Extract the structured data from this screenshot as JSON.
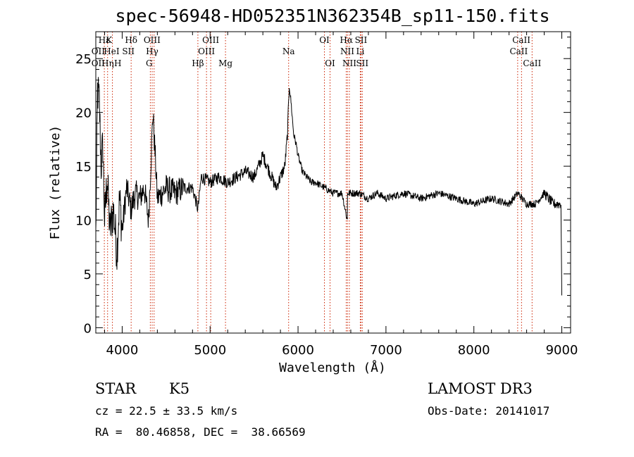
{
  "chart_data": {
    "type": "line",
    "title": "spec-56948-HD052351N362354B_sp11-150.fits",
    "xlabel": "Wavelength (Å)",
    "ylabel": "Flux (relative)",
    "xlim": [
      3700,
      9100
    ],
    "ylim": [
      -0.5,
      27.5
    ],
    "xticks": [
      4000,
      5000,
      6000,
      7000,
      8000,
      9000
    ],
    "yticks": [
      0,
      5,
      10,
      15,
      20,
      25
    ],
    "grid": false,
    "series": [
      {
        "name": "flux",
        "x": [
          3700,
          3720,
          3740,
          3760,
          3780,
          3800,
          3830,
          3860,
          3900,
          3940,
          3970,
          4000,
          4050,
          4100,
          4150,
          4200,
          4250,
          4300,
          4350,
          4400,
          4500,
          4600,
          4700,
          4800,
          4861,
          4900,
          5000,
          5100,
          5200,
          5300,
          5400,
          5500,
          5600,
          5700,
          5750,
          5800,
          5850,
          5880,
          5900,
          5920,
          5950,
          5980,
          6000,
          6050,
          6100,
          6150,
          6200,
          6300,
          6400,
          6500,
          6560,
          6563,
          6600,
          6700,
          6800,
          6900,
          7000,
          7200,
          7400,
          7600,
          7800,
          8000,
          8200,
          8400,
          8500,
          8600,
          8700,
          8800,
          8900,
          8990,
          9000
        ],
        "y": [
          8.5,
          22,
          21,
          15,
          17,
          10,
          14,
          9,
          11,
          7,
          12,
          9,
          13,
          11,
          12.5,
          12,
          13,
          10,
          20,
          12,
          13,
          12.5,
          13,
          13,
          11,
          14,
          13.5,
          14,
          13.5,
          14,
          14.5,
          14,
          16,
          14,
          13,
          14,
          15,
          18,
          22.5,
          21,
          18,
          17,
          16,
          14.5,
          14,
          13.5,
          13.5,
          13,
          12.5,
          12.5,
          10,
          12.5,
          12.5,
          12.5,
          12,
          12.5,
          12,
          12.5,
          12,
          12.5,
          12,
          11.5,
          12,
          11.5,
          12.5,
          11.5,
          11.5,
          12.5,
          11.5,
          11.5,
          3
        ]
      }
    ],
    "lines": [
      {
        "name": "Hε",
        "wl": 3797
      },
      {
        "name": "K",
        "wl": 3834
      },
      {
        "name": "H",
        "wl": 3889
      },
      {
        "name": "Hδ",
        "wl": 4102
      },
      {
        "name": "OIII",
        "wl": 4320
      },
      {
        "name": "Hγ",
        "wl": 4341
      },
      {
        "name": "G",
        "wl": 4363
      },
      {
        "name": "Hβ",
        "wl": 4861
      },
      {
        "name": "OIII",
        "wl": 4959
      },
      {
        "name": "OIII",
        "wl": 5007
      },
      {
        "name": "Mg",
        "wl": 5175
      },
      {
        "name": "Na",
        "wl": 5893
      },
      {
        "name": "OI",
        "wl": 6300
      },
      {
        "name": "OI",
        "wl": 6364
      },
      {
        "name": "Hα",
        "wl": 6563
      },
      {
        "name": "NII",
        "wl": 6548
      },
      {
        "name": "NII",
        "wl": 6584
      },
      {
        "name": "SII",
        "wl": 6716
      },
      {
        "name": "Li",
        "wl": 6708
      },
      {
        "name": "SII",
        "wl": 6731
      },
      {
        "name": "CaII",
        "wl": 8498
      },
      {
        "name": "CaII",
        "wl": 8542
      },
      {
        "name": "CaII",
        "wl": 8662
      }
    ],
    "line_labels": [
      {
        "text": "Hε",
        "wl": 3797,
        "row": 1
      },
      {
        "text": "K",
        "wl": 3850,
        "row": 1
      },
      {
        "text": "Hδ",
        "wl": 4102,
        "row": 1
      },
      {
        "text": "OIII",
        "wl": 4340,
        "row": 1
      },
      {
        "text": "OIII",
        "wl": 5007,
        "row": 1
      },
      {
        "text": "OI",
        "wl": 6300,
        "row": 1
      },
      {
        "text": "Hα",
        "wl": 6550,
        "row": 1
      },
      {
        "text": "SII",
        "wl": 6716,
        "row": 1
      },
      {
        "text": "CaII",
        "wl": 8540,
        "row": 1
      },
      {
        "text": "OII",
        "wl": 3727,
        "row": 2
      },
      {
        "text": "HeI",
        "wl": 3880,
        "row": 2
      },
      {
        "text": "SII",
        "wl": 4070,
        "row": 2
      },
      {
        "text": "Hγ",
        "wl": 4341,
        "row": 2
      },
      {
        "text": "OIII",
        "wl": 4959,
        "row": 2
      },
      {
        "text": "Na",
        "wl": 5893,
        "row": 2
      },
      {
        "text": "NII",
        "wl": 6560,
        "row": 2
      },
      {
        "text": "Li",
        "wl": 6708,
        "row": 2
      },
      {
        "text": "CaII",
        "wl": 8510,
        "row": 2
      },
      {
        "text": "OII",
        "wl": 3727,
        "row": 3
      },
      {
        "text": "Hη",
        "wl": 3835,
        "row": 3
      },
      {
        "text": "H",
        "wl": 3950,
        "row": 3
      },
      {
        "text": "G",
        "wl": 4307,
        "row": 3
      },
      {
        "text": "Hβ",
        "wl": 4861,
        "row": 3
      },
      {
        "text": "Mg",
        "wl": 5175,
        "row": 3
      },
      {
        "text": "OI",
        "wl": 6364,
        "row": 3
      },
      {
        "text": "NII",
        "wl": 6584,
        "row": 3
      },
      {
        "text": "SII",
        "wl": 6731,
        "row": 3
      },
      {
        "text": "CaII",
        "wl": 8662,
        "row": 3
      }
    ]
  },
  "info": {
    "object_class": "STAR",
    "subclass": "K5",
    "survey": "LAMOST DR3",
    "redshift": "cz = 22.5 ± 33.5 km/s",
    "obs_date": "Obs-Date: 20141017",
    "coords": "RA =  80.46858, DEC =  38.66569"
  },
  "colors": {
    "spectrum": "#000000",
    "line_marker": "#cc2200",
    "axes": "#000000",
    "background": "#ffffff"
  }
}
